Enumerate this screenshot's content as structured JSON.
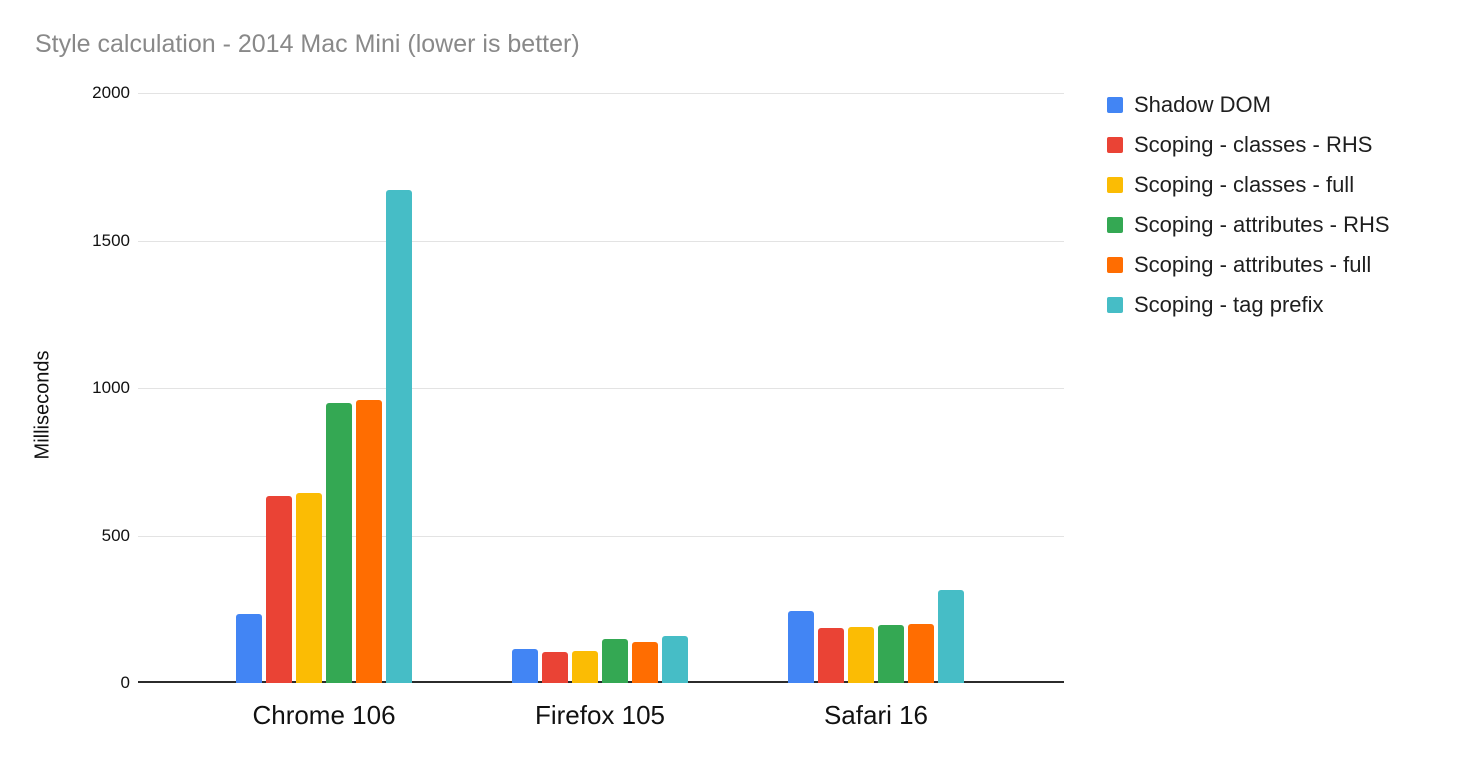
{
  "chart_data": {
    "type": "bar",
    "title": "Style calculation - 2014 Mac Mini (lower is better)",
    "categories": [
      "Chrome 106",
      "Firefox 105",
      "Safari 16"
    ],
    "series": [
      {
        "name": "Shadow DOM",
        "color": "#4285F4",
        "values": [
          235,
          115,
          245
        ]
      },
      {
        "name": "Scoping - classes - RHS",
        "color": "#EA4335",
        "values": [
          635,
          105,
          185
        ]
      },
      {
        "name": "Scoping - classes - full",
        "color": "#FBBC04",
        "values": [
          645,
          108,
          190
        ]
      },
      {
        "name": "Scoping - attributes - RHS",
        "color": "#34A853",
        "values": [
          950,
          148,
          195
        ]
      },
      {
        "name": "Scoping - attributes - full",
        "color": "#FF6D01",
        "values": [
          960,
          140,
          200
        ]
      },
      {
        "name": "Scoping - tag prefix",
        "color": "#46BDC6",
        "values": [
          1670,
          160,
          315
        ]
      }
    ],
    "xlabel": "",
    "ylabel": "Milliseconds",
    "ylim": [
      0,
      2000
    ],
    "yticks": [
      0,
      500,
      1000,
      1500,
      2000
    ],
    "grid": true,
    "legend_position": "right"
  },
  "colors": {
    "title_text": "#898989",
    "axis_text": "#111111",
    "legend_text": "#1f1f1f",
    "gridline": "#e3e3e3",
    "axis_line": "#2b2b2b",
    "background": "#ffffff"
  }
}
